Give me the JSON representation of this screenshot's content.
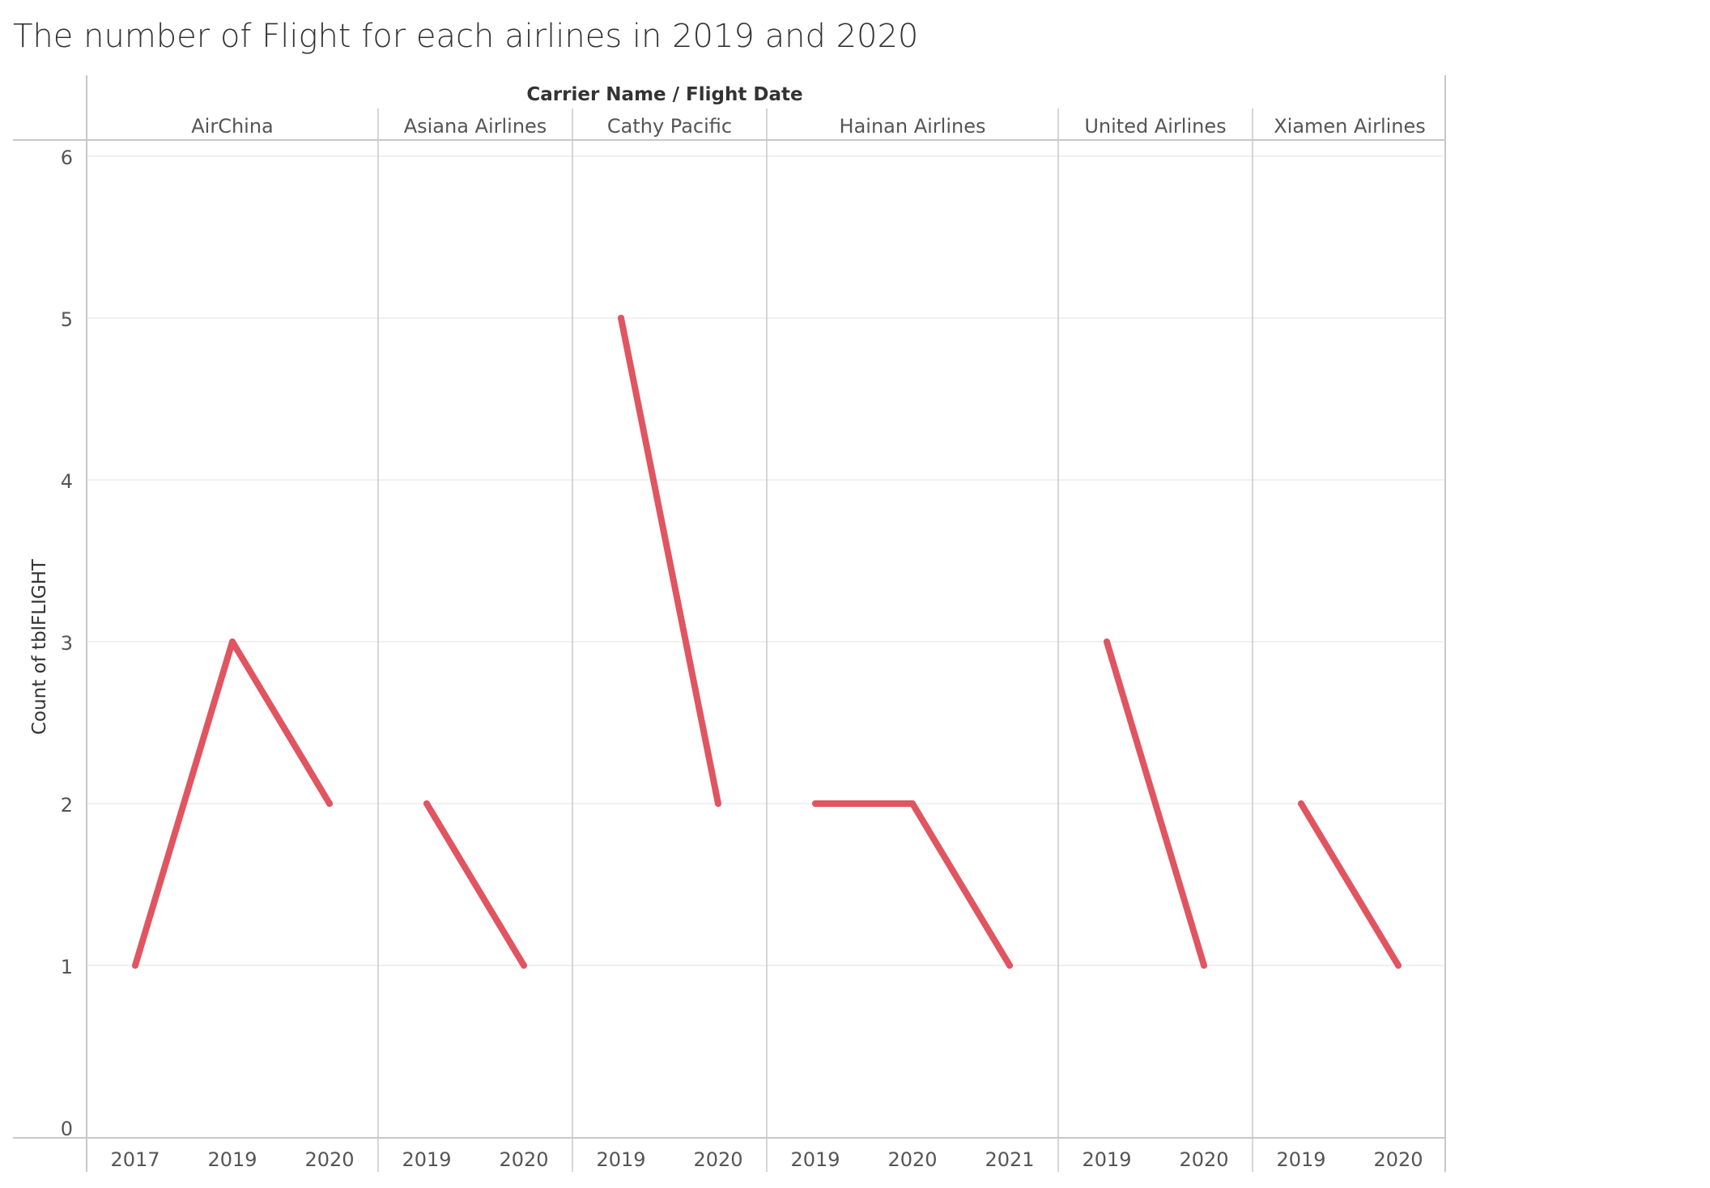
{
  "chart_data": {
    "type": "line",
    "title": "The number of Flight for each airlines in 2019 and 2020",
    "column_header": "Carrier Name / Flight Date",
    "ylabel": "Count of tblFLIGHT",
    "ylim": [
      0,
      6
    ],
    "yticks": [
      0,
      1,
      2,
      3,
      4,
      5,
      6
    ],
    "grid": true,
    "line_color": "#e05560",
    "panes": [
      {
        "name": "AirChina",
        "x": [
          "2017",
          "2019",
          "2020"
        ],
        "values": [
          1,
          3,
          2
        ]
      },
      {
        "name": "Asiana Airlines",
        "x": [
          "2019",
          "2020"
        ],
        "values": [
          2,
          1
        ]
      },
      {
        "name": "Cathy Pacific",
        "x": [
          "2019",
          "2020"
        ],
        "values": [
          5,
          2
        ]
      },
      {
        "name": "Hainan Airlines",
        "x": [
          "2019",
          "2020",
          "2021"
        ],
        "values": [
          2,
          2,
          1
        ]
      },
      {
        "name": "United Airlines",
        "x": [
          "2019",
          "2020"
        ],
        "values": [
          3,
          1
        ]
      },
      {
        "name": "Xiamen Airlines",
        "x": [
          "2019",
          "2020"
        ],
        "values": [
          2,
          1
        ]
      }
    ]
  }
}
